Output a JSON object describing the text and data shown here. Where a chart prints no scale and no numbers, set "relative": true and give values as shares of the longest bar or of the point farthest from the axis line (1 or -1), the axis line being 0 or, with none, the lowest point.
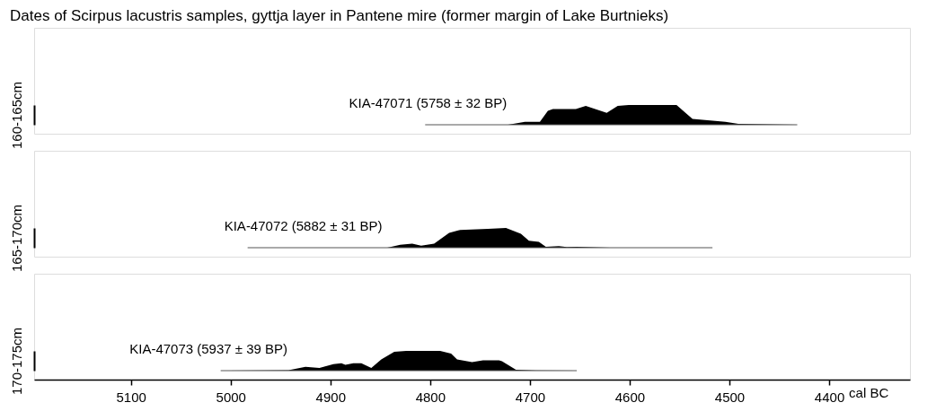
{
  "chart_data": [
    {
      "type": "area",
      "title": "Dates of Scirpus lacustris samples, gyttja layer in Pantene mire (former margin of Lake Burtnieks)",
      "ylabel": "160-165cm",
      "relative": true,
      "xlim": [
        5197,
        4319
      ],
      "tick_labels": false,
      "grid": false,
      "series": [
        {
          "name": "KIA-47071 (5758 ± 32 BP)",
          "color": "#000000",
          "x": [
            4805,
            4722,
            4705,
            4690,
            4682,
            4677,
            4654,
            4644,
            4623,
            4612,
            4601,
            4553,
            4537,
            4504,
            4491,
            4432
          ],
          "values": [
            0,
            0,
            0.15,
            0.15,
            0.7,
            0.8,
            0.8,
            0.95,
            0.6,
            0.95,
            1,
            1,
            0.3,
            0.15,
            0.05,
            0
          ]
        }
      ]
    },
    {
      "type": "area",
      "ylabel": "165-170cm",
      "relative": true,
      "xlim": [
        5197,
        4319
      ],
      "tick_labels": false,
      "grid": false,
      "series": [
        {
          "name": "KIA-47072 (5882 ± 31 BP)",
          "color": "#000000",
          "x": [
            4983,
            4843,
            4830,
            4818,
            4809,
            4796,
            4781,
            4770,
            4742,
            4724,
            4709,
            4701,
            4691,
            4684,
            4671,
            4663,
            4653,
            4620,
            4517
          ],
          "values": [
            0,
            0,
            0.15,
            0.2,
            0.1,
            0.2,
            0.75,
            0.9,
            0.95,
            1,
            0.7,
            0.35,
            0.3,
            0.05,
            0.08,
            0.03,
            0.05,
            0,
            0
          ]
        }
      ]
    },
    {
      "type": "area",
      "ylabel": "170-175cm",
      "xlabel": "cal BC",
      "relative": true,
      "xlim": [
        5197,
        4319
      ],
      "xticks": [
        5100,
        5000,
        4900,
        4800,
        4700,
        4600,
        4500,
        4400
      ],
      "tick_labels": "x",
      "grid": false,
      "series": [
        {
          "name": "KIA-47073 (5937 ± 39 BP)",
          "color": "#000000",
          "x": [
            5010,
            4942,
            4925,
            4911,
            4897,
            4889,
            4885,
            4877,
            4869,
            4859,
            4849,
            4836,
            4824,
            4790,
            4779,
            4773,
            4758,
            4747,
            4731,
            4728,
            4714,
            4694,
            4653
          ],
          "values": [
            0,
            0.02,
            0.19,
            0.14,
            0.33,
            0.38,
            0.29,
            0.38,
            0.38,
            0.14,
            0.57,
            0.95,
            1,
            1,
            0.86,
            0.57,
            0.43,
            0.52,
            0.52,
            0.48,
            0.05,
            0.01,
            0
          ]
        }
      ]
    }
  ]
}
